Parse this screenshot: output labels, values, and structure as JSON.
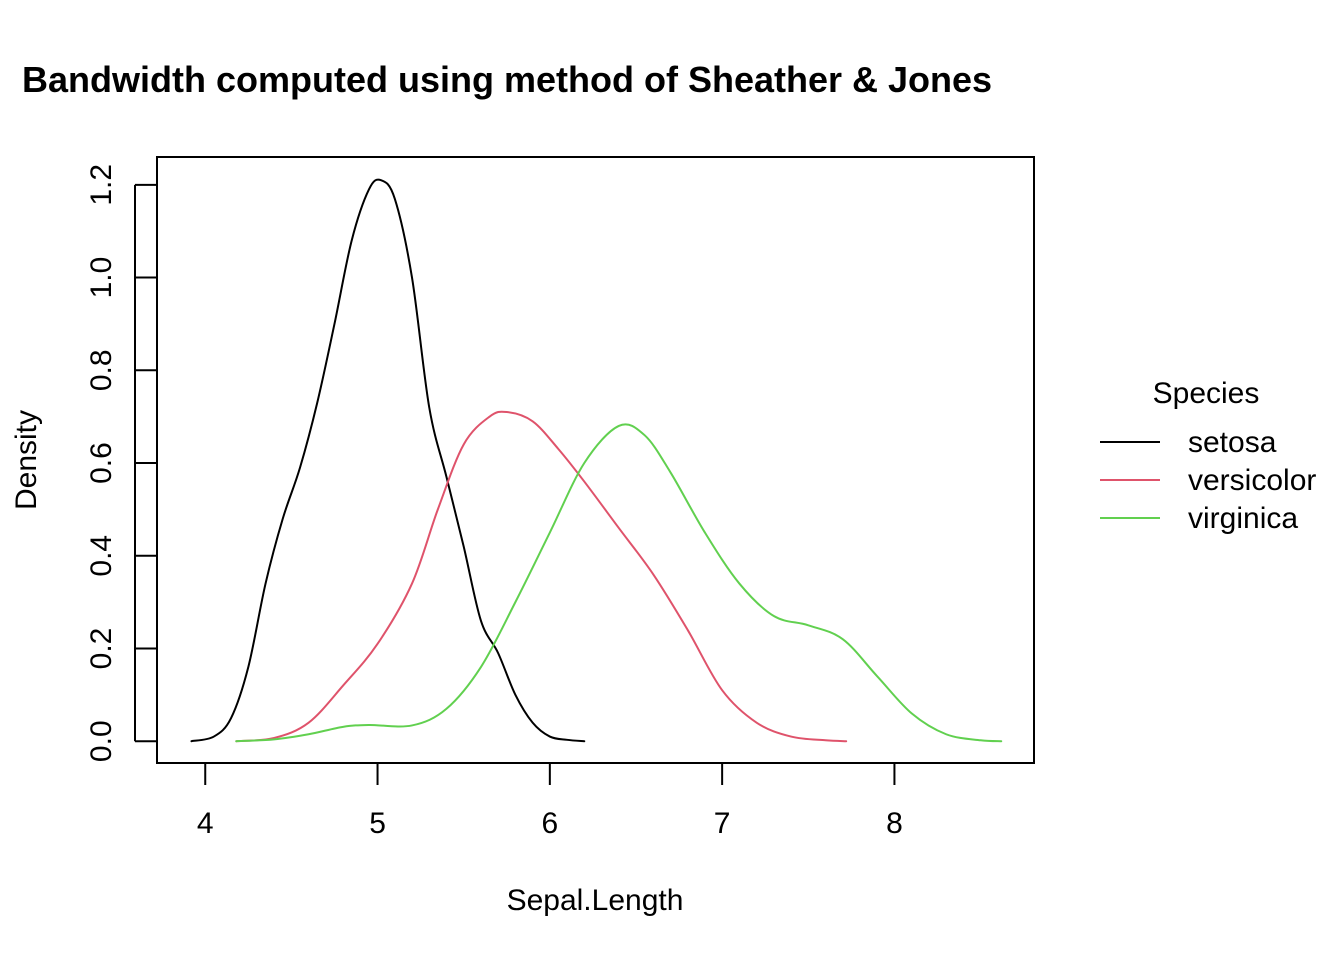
{
  "chart_data": {
    "type": "line",
    "title": "Bandwidth computed using method of Sheather & Jones",
    "xlabel": "Sepal.Length",
    "ylabel": "Density",
    "xlim": [
      3.72,
      8.81
    ],
    "ylim": [
      -0.047,
      1.26
    ],
    "x_ticks": [
      "4",
      "5",
      "6",
      "7",
      "8"
    ],
    "y_ticks": [
      "0.0",
      "0.2",
      "0.4",
      "0.6",
      "0.8",
      "1.0",
      "1.2"
    ],
    "legend": {
      "title": "Species",
      "position": "right"
    },
    "series": [
      {
        "name": "setosa",
        "color": "#000000",
        "points": [
          [
            3.92,
            0.0
          ],
          [
            4.05,
            0.01
          ],
          [
            4.15,
            0.05
          ],
          [
            4.25,
            0.16
          ],
          [
            4.35,
            0.34
          ],
          [
            4.45,
            0.48
          ],
          [
            4.55,
            0.59
          ],
          [
            4.65,
            0.73
          ],
          [
            4.75,
            0.9
          ],
          [
            4.85,
            1.08
          ],
          [
            4.95,
            1.19
          ],
          [
            5.02,
            1.21
          ],
          [
            5.1,
            1.17
          ],
          [
            5.2,
            1.0
          ],
          [
            5.3,
            0.72
          ],
          [
            5.4,
            0.57
          ],
          [
            5.5,
            0.42
          ],
          [
            5.6,
            0.26
          ],
          [
            5.7,
            0.19
          ],
          [
            5.8,
            0.1
          ],
          [
            5.9,
            0.04
          ],
          [
            6.0,
            0.01
          ],
          [
            6.1,
            0.003
          ],
          [
            6.2,
            0.0
          ]
        ]
      },
      {
        "name": "versicolor",
        "color": "#DF536B",
        "points": [
          [
            4.18,
            0.0
          ],
          [
            4.4,
            0.007
          ],
          [
            4.6,
            0.04
          ],
          [
            4.8,
            0.12
          ],
          [
            5.0,
            0.21
          ],
          [
            5.2,
            0.34
          ],
          [
            5.35,
            0.5
          ],
          [
            5.5,
            0.64
          ],
          [
            5.65,
            0.7
          ],
          [
            5.75,
            0.71
          ],
          [
            5.9,
            0.69
          ],
          [
            6.05,
            0.63
          ],
          [
            6.2,
            0.56
          ],
          [
            6.4,
            0.46
          ],
          [
            6.6,
            0.36
          ],
          [
            6.8,
            0.24
          ],
          [
            7.0,
            0.11
          ],
          [
            7.2,
            0.04
          ],
          [
            7.4,
            0.01
          ],
          [
            7.6,
            0.002
          ],
          [
            7.72,
            0.0
          ]
        ]
      },
      {
        "name": "virginica",
        "color": "#61D04F",
        "points": [
          [
            4.18,
            0.0
          ],
          [
            4.4,
            0.004
          ],
          [
            4.6,
            0.015
          ],
          [
            4.8,
            0.031
          ],
          [
            4.95,
            0.035
          ],
          [
            5.2,
            0.034
          ],
          [
            5.4,
            0.07
          ],
          [
            5.6,
            0.16
          ],
          [
            5.8,
            0.3
          ],
          [
            6.0,
            0.45
          ],
          [
            6.2,
            0.6
          ],
          [
            6.4,
            0.68
          ],
          [
            6.55,
            0.66
          ],
          [
            6.7,
            0.58
          ],
          [
            6.9,
            0.45
          ],
          [
            7.1,
            0.34
          ],
          [
            7.3,
            0.27
          ],
          [
            7.5,
            0.25
          ],
          [
            7.7,
            0.22
          ],
          [
            7.9,
            0.14
          ],
          [
            8.1,
            0.06
          ],
          [
            8.3,
            0.015
          ],
          [
            8.5,
            0.002
          ],
          [
            8.62,
            0.0
          ]
        ]
      }
    ]
  }
}
